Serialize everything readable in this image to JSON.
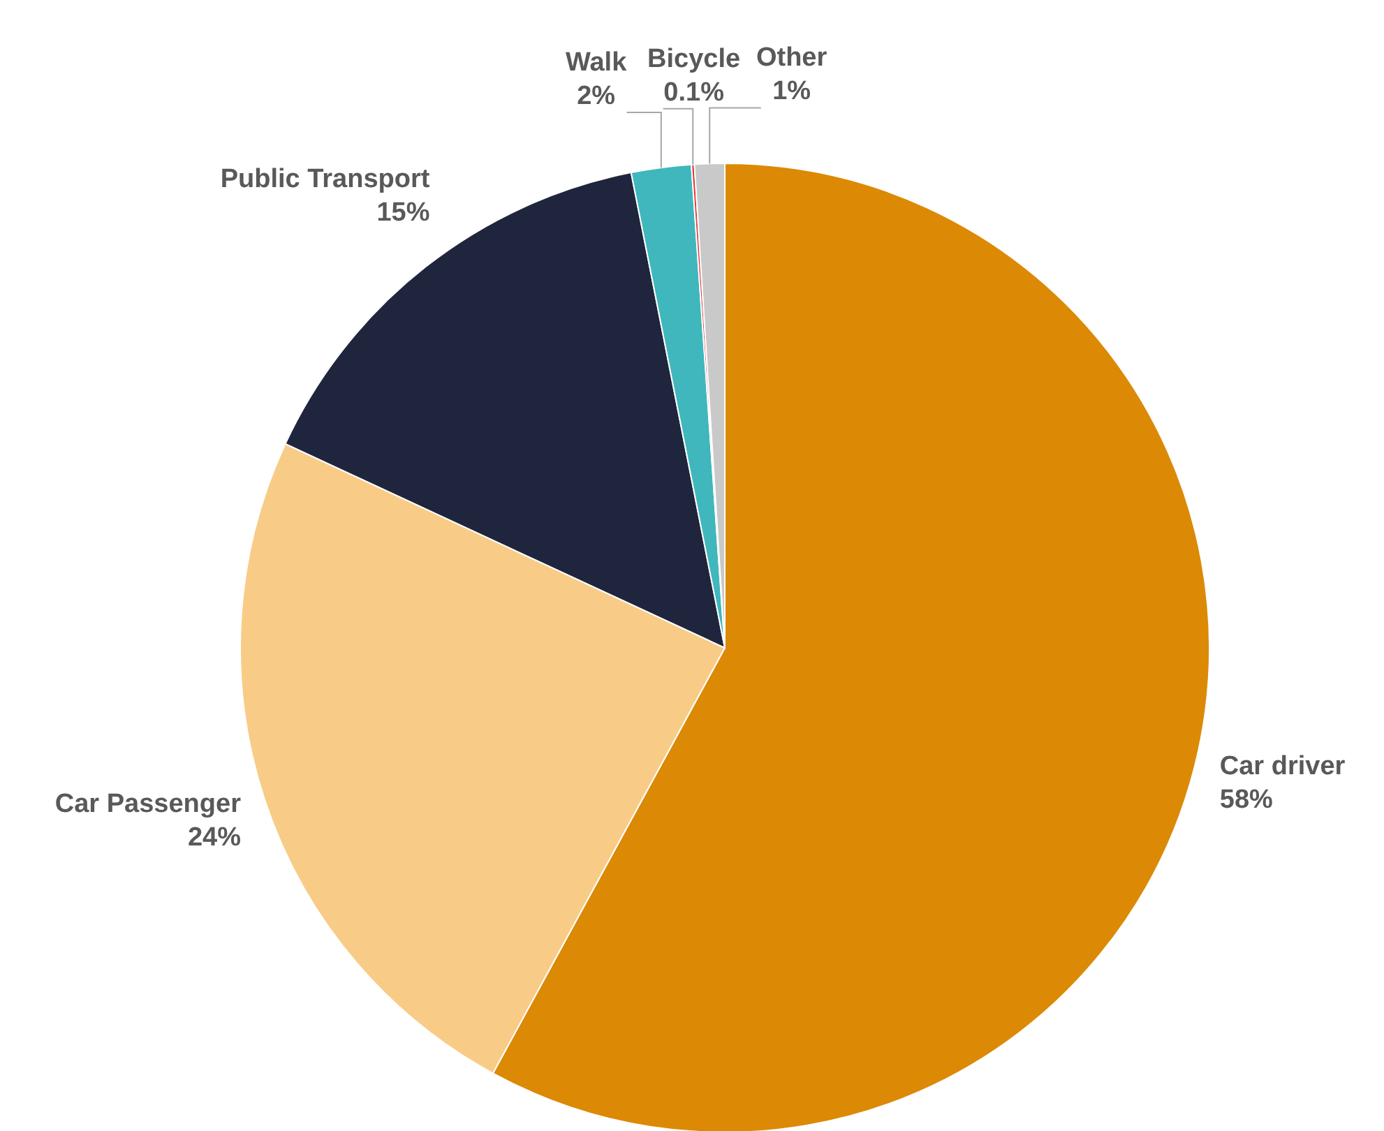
{
  "chart_data": {
    "type": "pie",
    "categories": [
      "Car driver",
      "Car Passenger",
      "Public Transport",
      "Walk",
      "Bicycle",
      "Other"
    ],
    "values": [
      58,
      24,
      15,
      2,
      0.1,
      1
    ],
    "colors": [
      "#dc8905",
      "#f8cc87",
      "#1f253d",
      "#40b7bc",
      "#e03a3e",
      "#c9c9c9"
    ],
    "value_labels": [
      "58%",
      "24%",
      "15%",
      "2%",
      "0.1%",
      "1%"
    ]
  }
}
